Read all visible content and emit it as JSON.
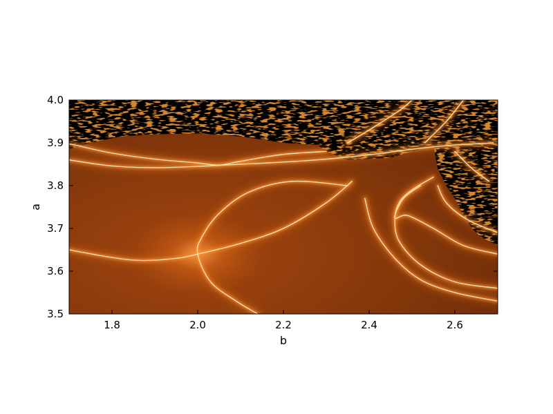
{
  "colors": {
    "background": "#ffffff",
    "plot_base": "#7a3209",
    "glow_mid": "#e8741c",
    "glow_peak": "#ffe3b0",
    "chaos": "#000000",
    "axis": "#000000"
  },
  "chart_data": {
    "type": "heatmap",
    "title": "",
    "xlabel": "b",
    "ylabel": "a",
    "xlim": [
      1.7,
      2.7
    ],
    "ylim": [
      3.5,
      4.0
    ],
    "x_ticks": [
      1.8,
      2.0,
      2.2,
      2.4,
      2.6
    ],
    "x_tick_labels": [
      "1.8",
      "2.0",
      "2.2",
      "2.4",
      "2.6"
    ],
    "y_ticks": [
      3.5,
      3.6,
      3.7,
      3.8,
      3.9,
      4.0
    ],
    "y_tick_labels": [
      "3.5",
      "3.6",
      "3.7",
      "3.8",
      "3.9",
      "4.0"
    ],
    "colormap": "black-orange-yellow",
    "grid": false,
    "curves": [
      {
        "points": [
          [
            1.7,
            3.65
          ],
          [
            1.8,
            3.632
          ],
          [
            1.87,
            3.625
          ],
          [
            1.95,
            3.63
          ],
          [
            2.0,
            3.64
          ],
          [
            2.1,
            3.665
          ],
          [
            2.2,
            3.7
          ],
          [
            2.3,
            3.76
          ],
          [
            2.36,
            3.81
          ]
        ]
      },
      {
        "points": [
          [
            2.35,
            3.8
          ],
          [
            2.22,
            3.81
          ],
          [
            2.12,
            3.785
          ],
          [
            2.05,
            3.735
          ],
          [
            2.01,
            3.68
          ],
          [
            2.0,
            3.64
          ],
          [
            2.03,
            3.575
          ],
          [
            2.09,
            3.53
          ],
          [
            2.14,
            3.5
          ]
        ]
      },
      {
        "points": [
          [
            1.7,
            3.86
          ],
          [
            1.8,
            3.846
          ],
          [
            1.9,
            3.842
          ],
          [
            2.0,
            3.845
          ],
          [
            2.1,
            3.85
          ],
          [
            2.2,
            3.855
          ],
          [
            2.3,
            3.862
          ],
          [
            2.4,
            3.872
          ],
          [
            2.5,
            3.885
          ],
          [
            2.6,
            3.895
          ],
          [
            2.7,
            3.9
          ]
        ]
      },
      {
        "points": [
          [
            1.7,
            3.898
          ],
          [
            1.8,
            3.876
          ],
          [
            1.9,
            3.862
          ],
          [
            2.0,
            3.853
          ],
          [
            2.05,
            3.848
          ],
          [
            2.1,
            3.857
          ],
          [
            2.2,
            3.873
          ],
          [
            2.3,
            3.88
          ]
        ]
      },
      {
        "points": [
          [
            2.35,
            3.9
          ],
          [
            2.4,
            3.93
          ],
          [
            2.47,
            3.975
          ],
          [
            2.5,
            4.0
          ]
        ]
      },
      {
        "points": [
          [
            2.53,
            3.9
          ],
          [
            2.58,
            3.95
          ],
          [
            2.62,
            4.0
          ]
        ]
      },
      {
        "points": [
          [
            2.7,
            3.56
          ],
          [
            2.6,
            3.575
          ],
          [
            2.52,
            3.615
          ],
          [
            2.47,
            3.67
          ],
          [
            2.46,
            3.72
          ],
          [
            2.47,
            3.76
          ],
          [
            2.5,
            3.79
          ],
          [
            2.55,
            3.82
          ]
        ]
      },
      {
        "points": [
          [
            2.7,
            3.64
          ],
          [
            2.62,
            3.66
          ],
          [
            2.55,
            3.7
          ],
          [
            2.49,
            3.73
          ],
          [
            2.46,
            3.725
          ],
          [
            2.48,
            3.77
          ],
          [
            2.52,
            3.8
          ]
        ]
      },
      {
        "points": [
          [
            2.7,
            3.69
          ],
          [
            2.63,
            3.72
          ],
          [
            2.58,
            3.76
          ],
          [
            2.56,
            3.8
          ]
        ]
      },
      {
        "points": [
          [
            2.68,
            3.81
          ],
          [
            2.64,
            3.84
          ],
          [
            2.6,
            3.88
          ]
        ]
      },
      {
        "points": [
          [
            2.7,
            3.53
          ],
          [
            2.6,
            3.55
          ],
          [
            2.52,
            3.58
          ],
          [
            2.46,
            3.63
          ],
          [
            2.41,
            3.7
          ],
          [
            2.39,
            3.77
          ]
        ]
      }
    ],
    "chaotic_regions": [
      {
        "polygon": [
          [
            1.7,
            3.885
          ],
          [
            1.75,
            3.9
          ],
          [
            1.82,
            3.915
          ],
          [
            1.9,
            3.92
          ],
          [
            2.0,
            3.922
          ],
          [
            2.1,
            3.915
          ],
          [
            2.2,
            3.9
          ],
          [
            2.28,
            3.895
          ],
          [
            2.3,
            3.88
          ],
          [
            2.35,
            3.86
          ],
          [
            2.45,
            3.865
          ],
          [
            2.5,
            3.88
          ],
          [
            2.55,
            3.895
          ],
          [
            2.62,
            3.895
          ],
          [
            2.7,
            3.89
          ],
          [
            2.7,
            4.0
          ],
          [
            1.7,
            4.0
          ]
        ]
      },
      {
        "polygon": [
          [
            2.55,
            3.895
          ],
          [
            2.56,
            3.84
          ],
          [
            2.58,
            3.8
          ],
          [
            2.6,
            3.77
          ],
          [
            2.62,
            3.73
          ],
          [
            2.64,
            3.7
          ],
          [
            2.66,
            3.68
          ],
          [
            2.7,
            3.66
          ],
          [
            2.7,
            3.89
          ]
        ]
      }
    ]
  }
}
